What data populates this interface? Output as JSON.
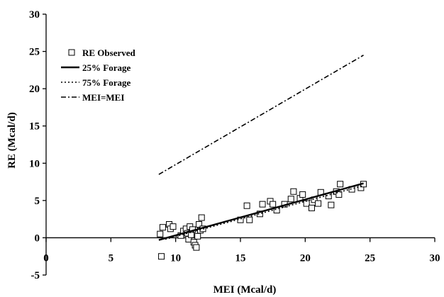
{
  "chart_data": {
    "type": "scatter",
    "xlabel": "MEI (Mcal/d)",
    "ylabel": "RE (Mcal/d)",
    "xlim": [
      0,
      30
    ],
    "ylim": [
      -5,
      30
    ],
    "x_ticks": [
      0,
      5,
      10,
      15,
      20,
      25,
      30
    ],
    "y_ticks": [
      -5,
      0,
      5,
      10,
      15,
      20,
      25,
      30
    ],
    "x_tick_labels": [
      "0",
      "5",
      "10",
      "15",
      "20",
      "25",
      "30"
    ],
    "y_tick_labels": [
      "-5",
      "0",
      "5",
      "10",
      "15",
      "20",
      "25",
      "30"
    ],
    "grid": false,
    "legend_position": "top-left",
    "series": [
      {
        "name": "RE Observed",
        "kind": "scatter",
        "marker": "open-square",
        "points": [
          [
            8.8,
            0.5
          ],
          [
            8.9,
            -2.5
          ],
          [
            9.0,
            1.4
          ],
          [
            9.5,
            1.8
          ],
          [
            9.6,
            1.2
          ],
          [
            9.8,
            1.5
          ],
          [
            10.4,
            0.3
          ],
          [
            10.6,
            0.9
          ],
          [
            10.8,
            1.2
          ],
          [
            10.9,
            0.6
          ],
          [
            11.0,
            -0.2
          ],
          [
            11.1,
            1.5
          ],
          [
            11.2,
            0.4
          ],
          [
            11.3,
            1.1
          ],
          [
            11.4,
            -0.6
          ],
          [
            11.5,
            -1.0
          ],
          [
            11.6,
            -1.3
          ],
          [
            11.7,
            0.2
          ],
          [
            11.8,
            1.8
          ],
          [
            11.9,
            1.0
          ],
          [
            12.0,
            2.7
          ],
          [
            12.1,
            1.2
          ],
          [
            15.0,
            2.4
          ],
          [
            15.5,
            4.3
          ],
          [
            15.7,
            2.4
          ],
          [
            16.5,
            3.2
          ],
          [
            16.7,
            4.5
          ],
          [
            17.3,
            4.9
          ],
          [
            17.5,
            4.5
          ],
          [
            17.8,
            3.7
          ],
          [
            18.4,
            4.5
          ],
          [
            18.9,
            5.2
          ],
          [
            19.1,
            6.2
          ],
          [
            19.6,
            5.3
          ],
          [
            19.8,
            5.8
          ],
          [
            20.1,
            4.6
          ],
          [
            20.5,
            4.0
          ],
          [
            20.7,
            5.1
          ],
          [
            21.0,
            4.6
          ],
          [
            21.2,
            6.1
          ],
          [
            21.8,
            5.6
          ],
          [
            22.0,
            4.4
          ],
          [
            22.4,
            6.2
          ],
          [
            22.6,
            5.8
          ],
          [
            22.7,
            7.2
          ],
          [
            23.6,
            6.5
          ],
          [
            24.3,
            6.7
          ],
          [
            24.5,
            7.2
          ]
        ]
      },
      {
        "name": "25% Forage",
        "kind": "line",
        "dash": "solid",
        "points": [
          [
            8.7,
            -0.3
          ],
          [
            24.5,
            7.3
          ]
        ]
      },
      {
        "name": "75% Forage",
        "kind": "line",
        "dash": "dotted",
        "points": [
          [
            9.2,
            -0.2
          ],
          [
            24.5,
            7.0
          ]
        ]
      },
      {
        "name": "MEI=MEI",
        "kind": "line",
        "dash": "dash-dot",
        "points": [
          [
            8.7,
            8.5
          ],
          [
            24.5,
            24.5
          ]
        ]
      }
    ]
  }
}
